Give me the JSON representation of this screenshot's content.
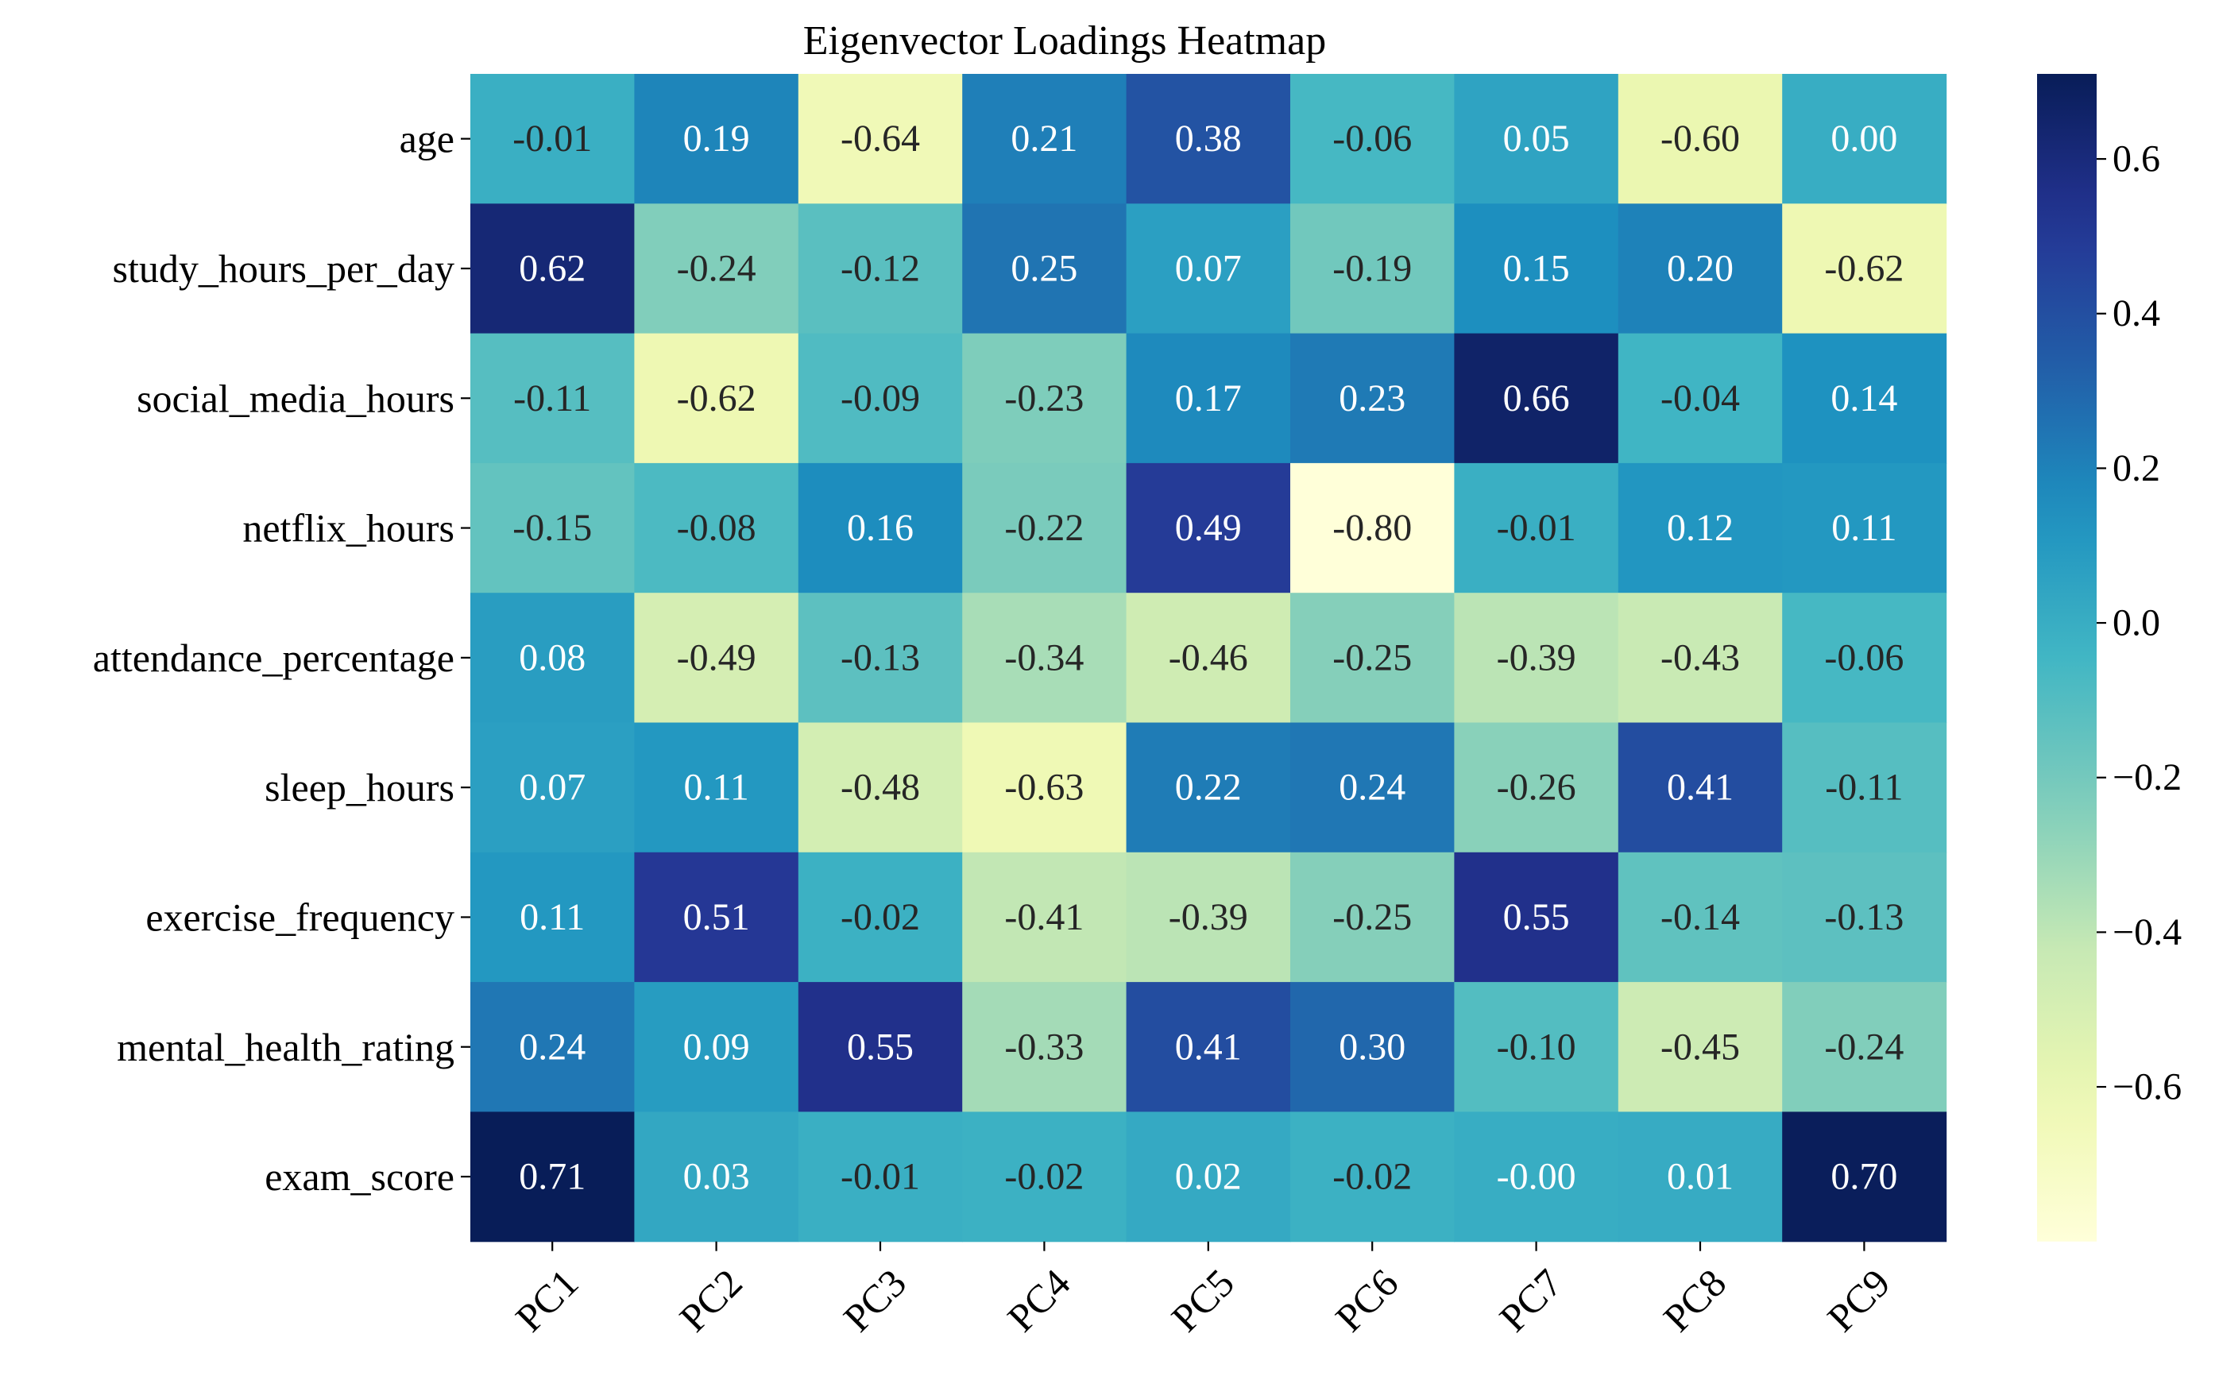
{
  "chart_data": {
    "type": "heatmap",
    "title": "Eigenvector Loadings Heatmap",
    "rows": [
      "age",
      "study_hours_per_day",
      "social_media_hours",
      "netflix_hours",
      "attendance_percentage",
      "sleep_hours",
      "exercise_frequency",
      "mental_health_rating",
      "exam_score"
    ],
    "columns": [
      "PC1",
      "PC2",
      "PC3",
      "PC4",
      "PC5",
      "PC6",
      "PC7",
      "PC8",
      "PC9"
    ],
    "values": [
      [
        -0.01,
        0.19,
        -0.64,
        0.21,
        0.38,
        -0.06,
        0.05,
        -0.6,
        0.0
      ],
      [
        0.62,
        -0.24,
        -0.12,
        0.25,
        0.07,
        -0.19,
        0.15,
        0.2,
        -0.62
      ],
      [
        -0.11,
        -0.62,
        -0.09,
        -0.23,
        0.17,
        0.23,
        0.66,
        -0.04,
        0.14
      ],
      [
        -0.15,
        -0.08,
        0.16,
        -0.22,
        0.49,
        -0.8,
        -0.01,
        0.12,
        0.11
      ],
      [
        0.08,
        -0.49,
        -0.13,
        -0.34,
        -0.46,
        -0.25,
        -0.39,
        -0.43,
        -0.06
      ],
      [
        0.07,
        0.11,
        -0.48,
        -0.63,
        0.22,
        0.24,
        -0.26,
        0.41,
        -0.11
      ],
      [
        0.11,
        0.51,
        -0.02,
        -0.41,
        -0.39,
        -0.25,
        0.55,
        -0.14,
        -0.13
      ],
      [
        0.24,
        0.09,
        0.55,
        -0.33,
        0.41,
        0.3,
        -0.1,
        -0.45,
        -0.24
      ],
      [
        0.71,
        0.03,
        -0.01,
        -0.02,
        0.02,
        -0.02,
        -0.0,
        0.01,
        0.7
      ]
    ],
    "cell_labels": [
      [
        "-0.01",
        "0.19",
        "-0.64",
        "0.21",
        "0.38",
        "-0.06",
        "0.05",
        "-0.60",
        "0.00"
      ],
      [
        "0.62",
        "-0.24",
        "-0.12",
        "0.25",
        "0.07",
        "-0.19",
        "0.15",
        "0.20",
        "-0.62"
      ],
      [
        "-0.11",
        "-0.62",
        "-0.09",
        "-0.23",
        "0.17",
        "0.23",
        "0.66",
        "-0.04",
        "0.14"
      ],
      [
        "-0.15",
        "-0.08",
        "0.16",
        "-0.22",
        "0.49",
        "-0.80",
        "-0.01",
        "0.12",
        "0.11"
      ],
      [
        "0.08",
        "-0.49",
        "-0.13",
        "-0.34",
        "-0.46",
        "-0.25",
        "-0.39",
        "-0.43",
        "-0.06"
      ],
      [
        "0.07",
        "0.11",
        "-0.48",
        "-0.63",
        "0.22",
        "0.24",
        "-0.26",
        "0.41",
        "-0.11"
      ],
      [
        "0.11",
        "0.51",
        "-0.02",
        "-0.41",
        "-0.39",
        "-0.25",
        "0.55",
        "-0.14",
        "-0.13"
      ],
      [
        "0.24",
        "0.09",
        "0.55",
        "-0.33",
        "0.41",
        "0.30",
        "-0.10",
        "-0.45",
        "-0.24"
      ],
      [
        "0.71",
        "0.03",
        "-0.01",
        "-0.02",
        "0.02",
        "-0.02",
        "-0.00",
        "0.01",
        "0.70"
      ]
    ],
    "colormap": "YlGnBu",
    "vmin": -0.8,
    "vmax": 0.71,
    "colorbar_ticks": [
      0.6,
      0.4,
      0.2,
      0.0,
      -0.2,
      -0.4,
      -0.6
    ],
    "colorbar_tick_labels": [
      "0.6",
      "0.4",
      "0.2",
      "0.0",
      "−0.2",
      "−0.4",
      "−0.6"
    ],
    "colorbar_placement": "right",
    "grid": false
  }
}
